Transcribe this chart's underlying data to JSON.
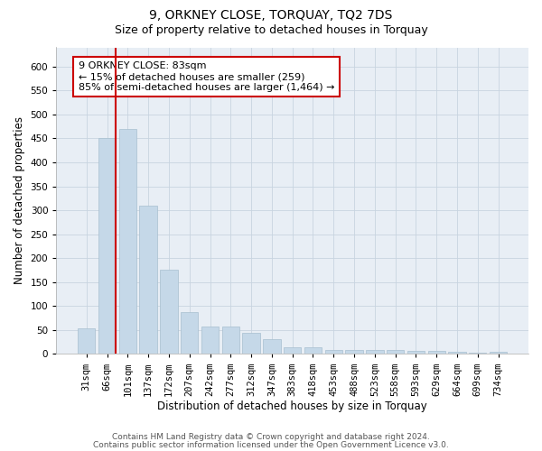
{
  "title": "9, ORKNEY CLOSE, TORQUAY, TQ2 7DS",
  "subtitle": "Size of property relative to detached houses in Torquay",
  "xlabel": "Distribution of detached houses by size in Torquay",
  "ylabel": "Number of detached properties",
  "categories": [
    "31sqm",
    "66sqm",
    "101sqm",
    "137sqm",
    "172sqm",
    "207sqm",
    "242sqm",
    "277sqm",
    "312sqm",
    "347sqm",
    "383sqm",
    "418sqm",
    "453sqm",
    "488sqm",
    "523sqm",
    "558sqm",
    "593sqm",
    "629sqm",
    "664sqm",
    "699sqm",
    "734sqm"
  ],
  "values": [
    53,
    450,
    470,
    310,
    175,
    88,
    58,
    58,
    44,
    31,
    14,
    14,
    8,
    8,
    9,
    8,
    7,
    7,
    5,
    2,
    4
  ],
  "bar_color": "#c5d8e8",
  "bar_edge_color": "#a8bfcf",
  "grid_color": "#c8d4e0",
  "background_color": "#e8eef5",
  "vline_color": "#cc0000",
  "vline_x_index": 1.425,
  "annotation_box_text": "9 ORKNEY CLOSE: 83sqm\n← 15% of detached houses are smaller (259)\n85% of semi-detached houses are larger (1,464) →",
  "annotation_box_color": "#cc0000",
  "ylim": [
    0,
    640
  ],
  "yticks": [
    0,
    50,
    100,
    150,
    200,
    250,
    300,
    350,
    400,
    450,
    500,
    550,
    600
  ],
  "footer1": "Contains HM Land Registry data © Crown copyright and database right 2024.",
  "footer2": "Contains public sector information licensed under the Open Government Licence v3.0.",
  "title_fontsize": 10,
  "subtitle_fontsize": 9,
  "axis_label_fontsize": 8.5,
  "tick_fontsize": 7.5,
  "annotation_fontsize": 8,
  "footer_fontsize": 6.5
}
